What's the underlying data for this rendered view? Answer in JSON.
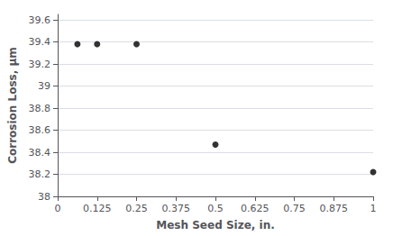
{
  "chart_data": {
    "type": "scatter",
    "xlabel": "Mesh Seed Size, in.",
    "ylabel": "Corrosion Loss, µm",
    "x": [
      0.0625,
      0.125,
      0.25,
      0.5,
      1.0
    ],
    "values": [
      39.38,
      39.38,
      39.38,
      38.47,
      38.22
    ],
    "xlim": [
      0,
      1.0
    ],
    "ylim": [
      38.0,
      39.65
    ],
    "xticks": [
      0,
      0.125,
      0.25,
      0.375,
      0.5,
      0.625,
      0.75,
      0.875,
      1
    ],
    "yticks": [
      38,
      38.2,
      38.4,
      38.6,
      38.8,
      39,
      39.2,
      39.4,
      39.6
    ],
    "color": "black",
    "marker": "circle",
    "grid": true
  }
}
